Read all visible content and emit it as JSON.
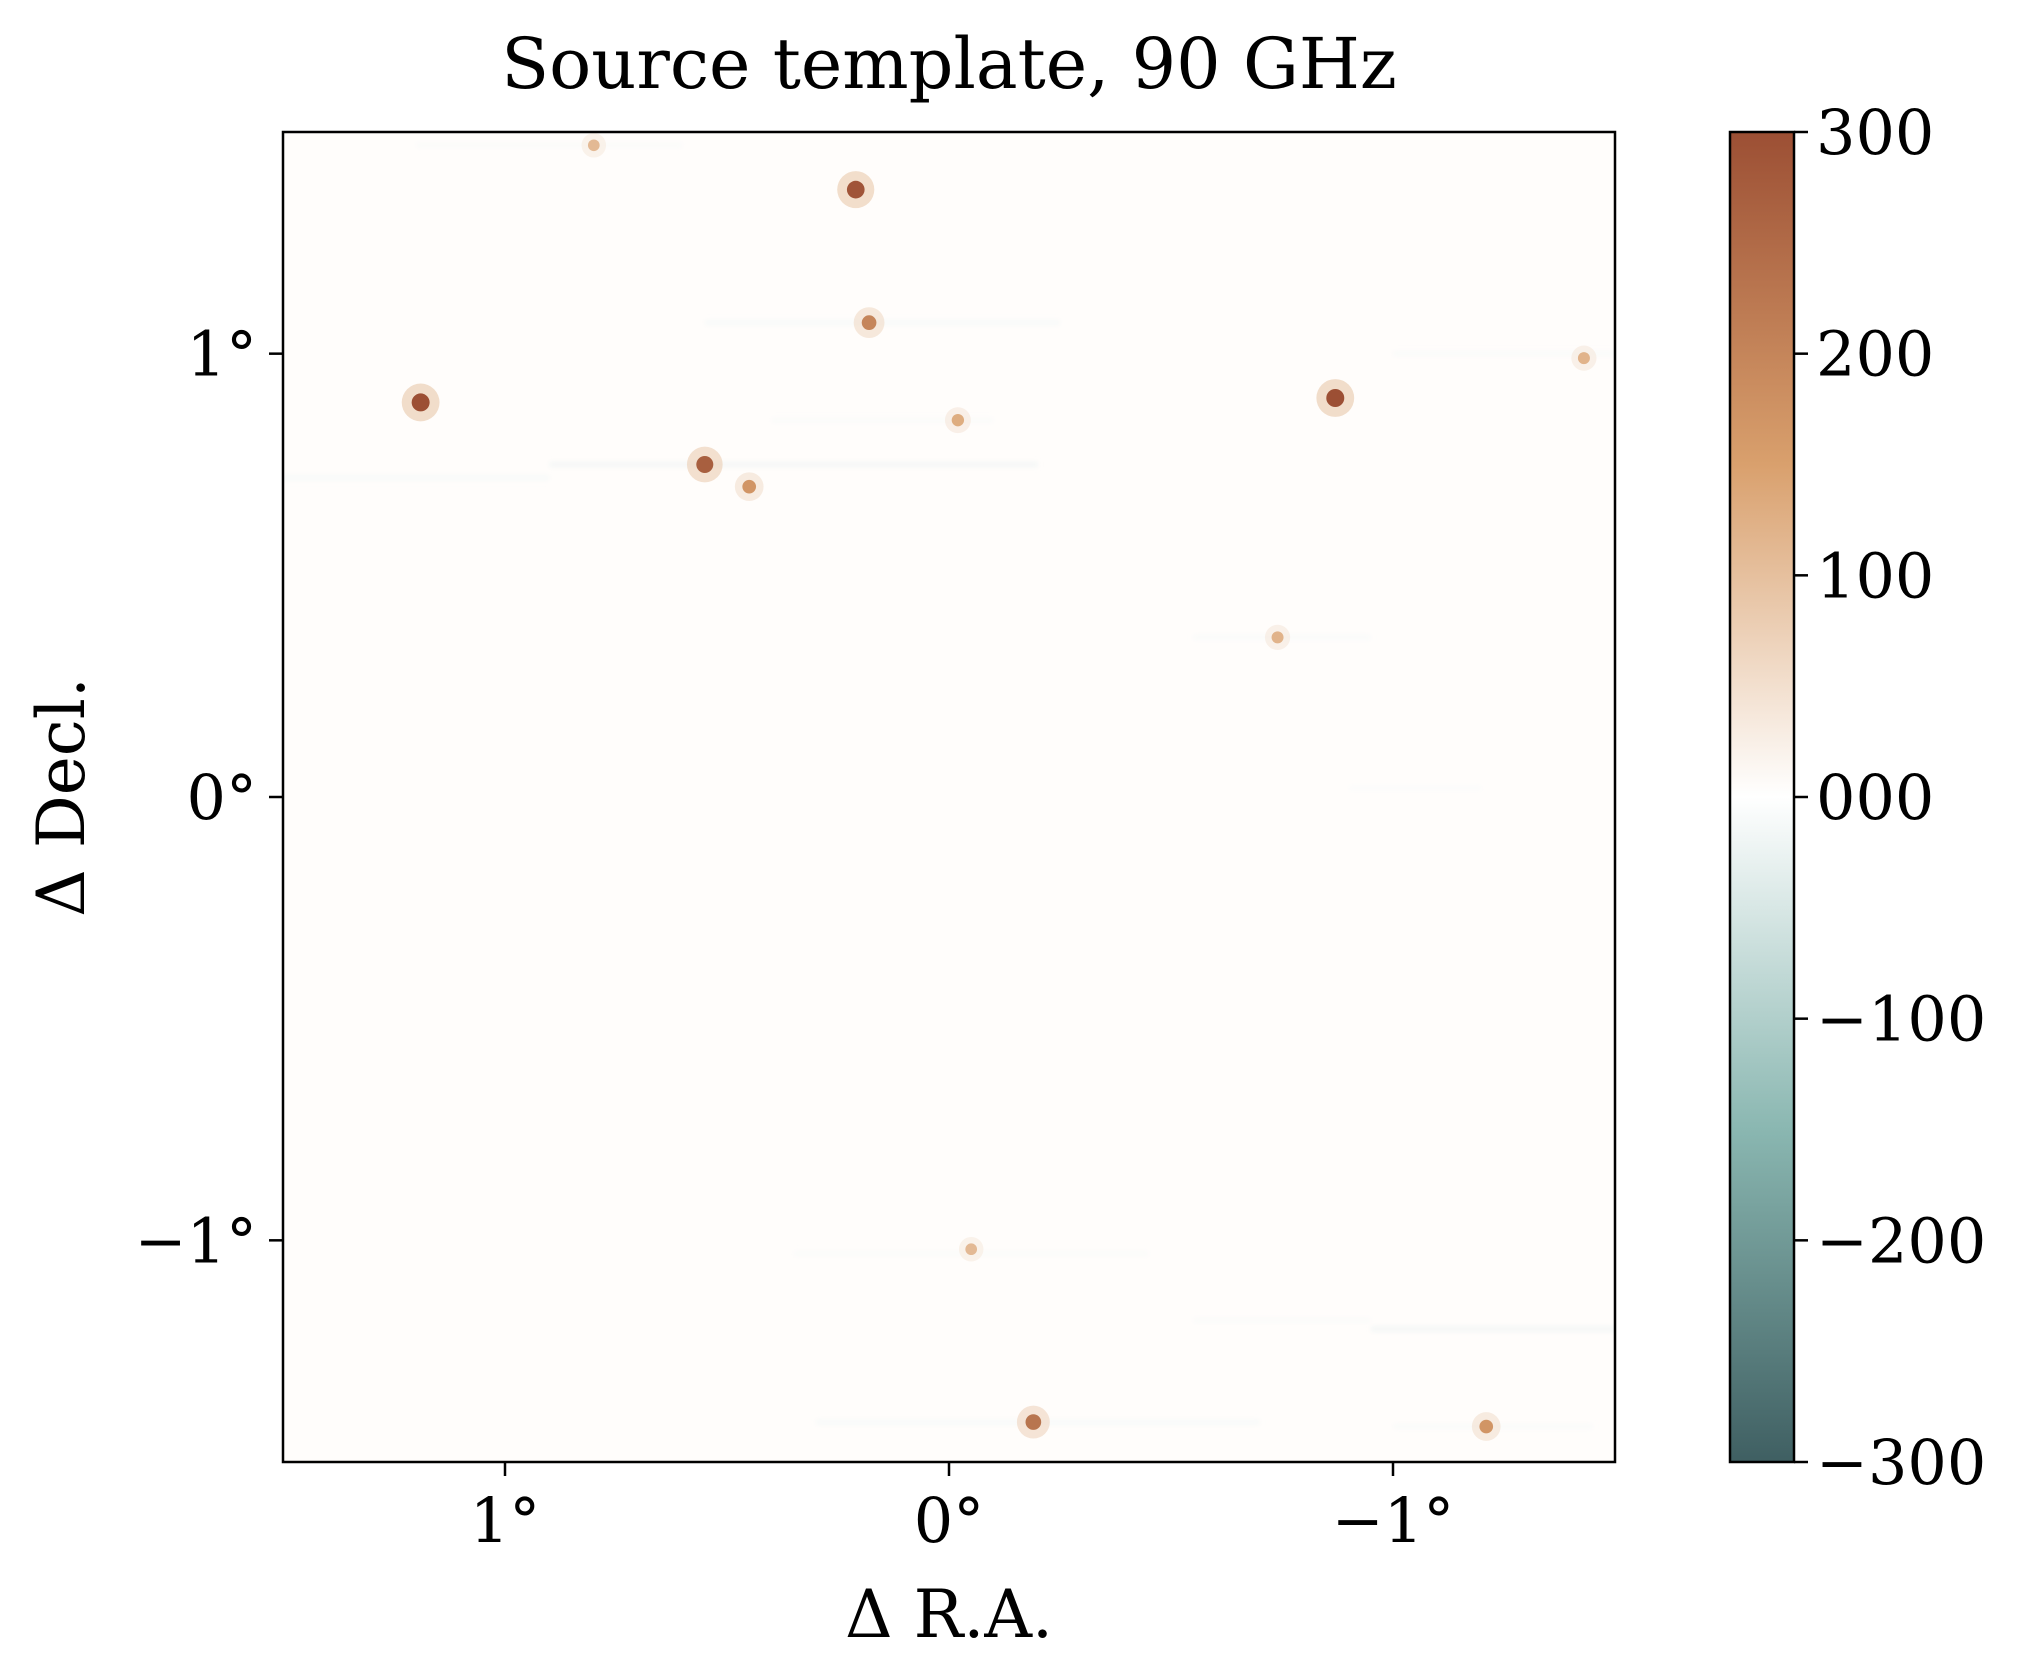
{
  "chart_data": {
    "type": "heatmap",
    "title": "Source template, 90 GHz",
    "xlabel": "Δ R.A.",
    "ylabel": "Δ Decl.",
    "xlim": [
      1.5,
      -1.5
    ],
    "ylim": [
      -1.5,
      1.5
    ],
    "x_ticks": [
      {
        "value": 1,
        "label": "1°"
      },
      {
        "value": 0,
        "label": "0°"
      },
      {
        "value": -1,
        "label": "−1°"
      }
    ],
    "y_ticks": [
      {
        "value": 1,
        "label": "1°"
      },
      {
        "value": 0,
        "label": "0°"
      },
      {
        "value": -1,
        "label": "−1°"
      }
    ],
    "grid": false,
    "background_value": 0,
    "colorbar": {
      "vmin": -300,
      "vmax": 300,
      "ticks": [
        {
          "value": 300,
          "label": "300"
        },
        {
          "value": 200,
          "label": "200"
        },
        {
          "value": 100,
          "label": "100"
        },
        {
          "value": 0,
          "label": "000"
        },
        {
          "value": -100,
          "label": "−100"
        },
        {
          "value": -200,
          "label": "−200"
        },
        {
          "value": -300,
          "label": "−300"
        }
      ],
      "colors": {
        "low": "#3f5f62",
        "mid_low": "#8ab7b1",
        "center": "#ffffff",
        "mid_high": "#d9a06d",
        "high": "#9c4f34"
      }
    },
    "sources": [
      {
        "x": 1.19,
        "y": 0.89,
        "value": 300
      },
      {
        "x": 0.8,
        "y": 1.47,
        "value": 110
      },
      {
        "x": 0.21,
        "y": 1.37,
        "value": 290
      },
      {
        "x": 0.18,
        "y": 1.07,
        "value": 200
      },
      {
        "x": -0.02,
        "y": 0.85,
        "value": 130
      },
      {
        "x": 0.55,
        "y": 0.75,
        "value": 270
      },
      {
        "x": 0.45,
        "y": 0.7,
        "value": 170
      },
      {
        "x": -0.87,
        "y": 0.9,
        "value": 300
      },
      {
        "x": -1.43,
        "y": 0.99,
        "value": 120
      },
      {
        "x": -0.74,
        "y": 0.36,
        "value": 120
      },
      {
        "x": -0.05,
        "y": -1.02,
        "value": 110
      },
      {
        "x": -0.19,
        "y": -1.41,
        "value": 230
      },
      {
        "x": -1.21,
        "y": -1.42,
        "value": 170
      }
    ],
    "streaks": [
      {
        "x0": 0.9,
        "x1": -0.2,
        "y": 0.75,
        "value": -25
      },
      {
        "x0": 1.5,
        "x1": 0.9,
        "y": 0.72,
        "value": -15
      },
      {
        "x0": 0.55,
        "x1": -0.25,
        "y": 1.07,
        "value": -15
      },
      {
        "x0": -1.0,
        "x1": -1.5,
        "y": 1.0,
        "value": -12
      },
      {
        "x0": -0.1,
        "x1": 0.4,
        "y": 0.85,
        "value": -10
      },
      {
        "x0": -0.55,
        "x1": -0.95,
        "y": 0.36,
        "value": -12
      },
      {
        "x0": -0.95,
        "x1": -1.5,
        "y": -1.2,
        "value": -25
      },
      {
        "x0": -0.55,
        "x1": -0.95,
        "y": -1.18,
        "value": -10
      },
      {
        "x0": 0.35,
        "x1": -0.45,
        "y": -1.03,
        "value": -10
      },
      {
        "x0": 0.3,
        "x1": -0.7,
        "y": -1.41,
        "value": -15
      },
      {
        "x0": -1.0,
        "x1": -1.45,
        "y": -1.42,
        "value": -12
      },
      {
        "x0": 1.2,
        "x1": 0.6,
        "y": 1.47,
        "value": -10
      },
      {
        "x0": -0.9,
        "x1": -1.2,
        "y": 0.02,
        "value": -8
      }
    ]
  }
}
